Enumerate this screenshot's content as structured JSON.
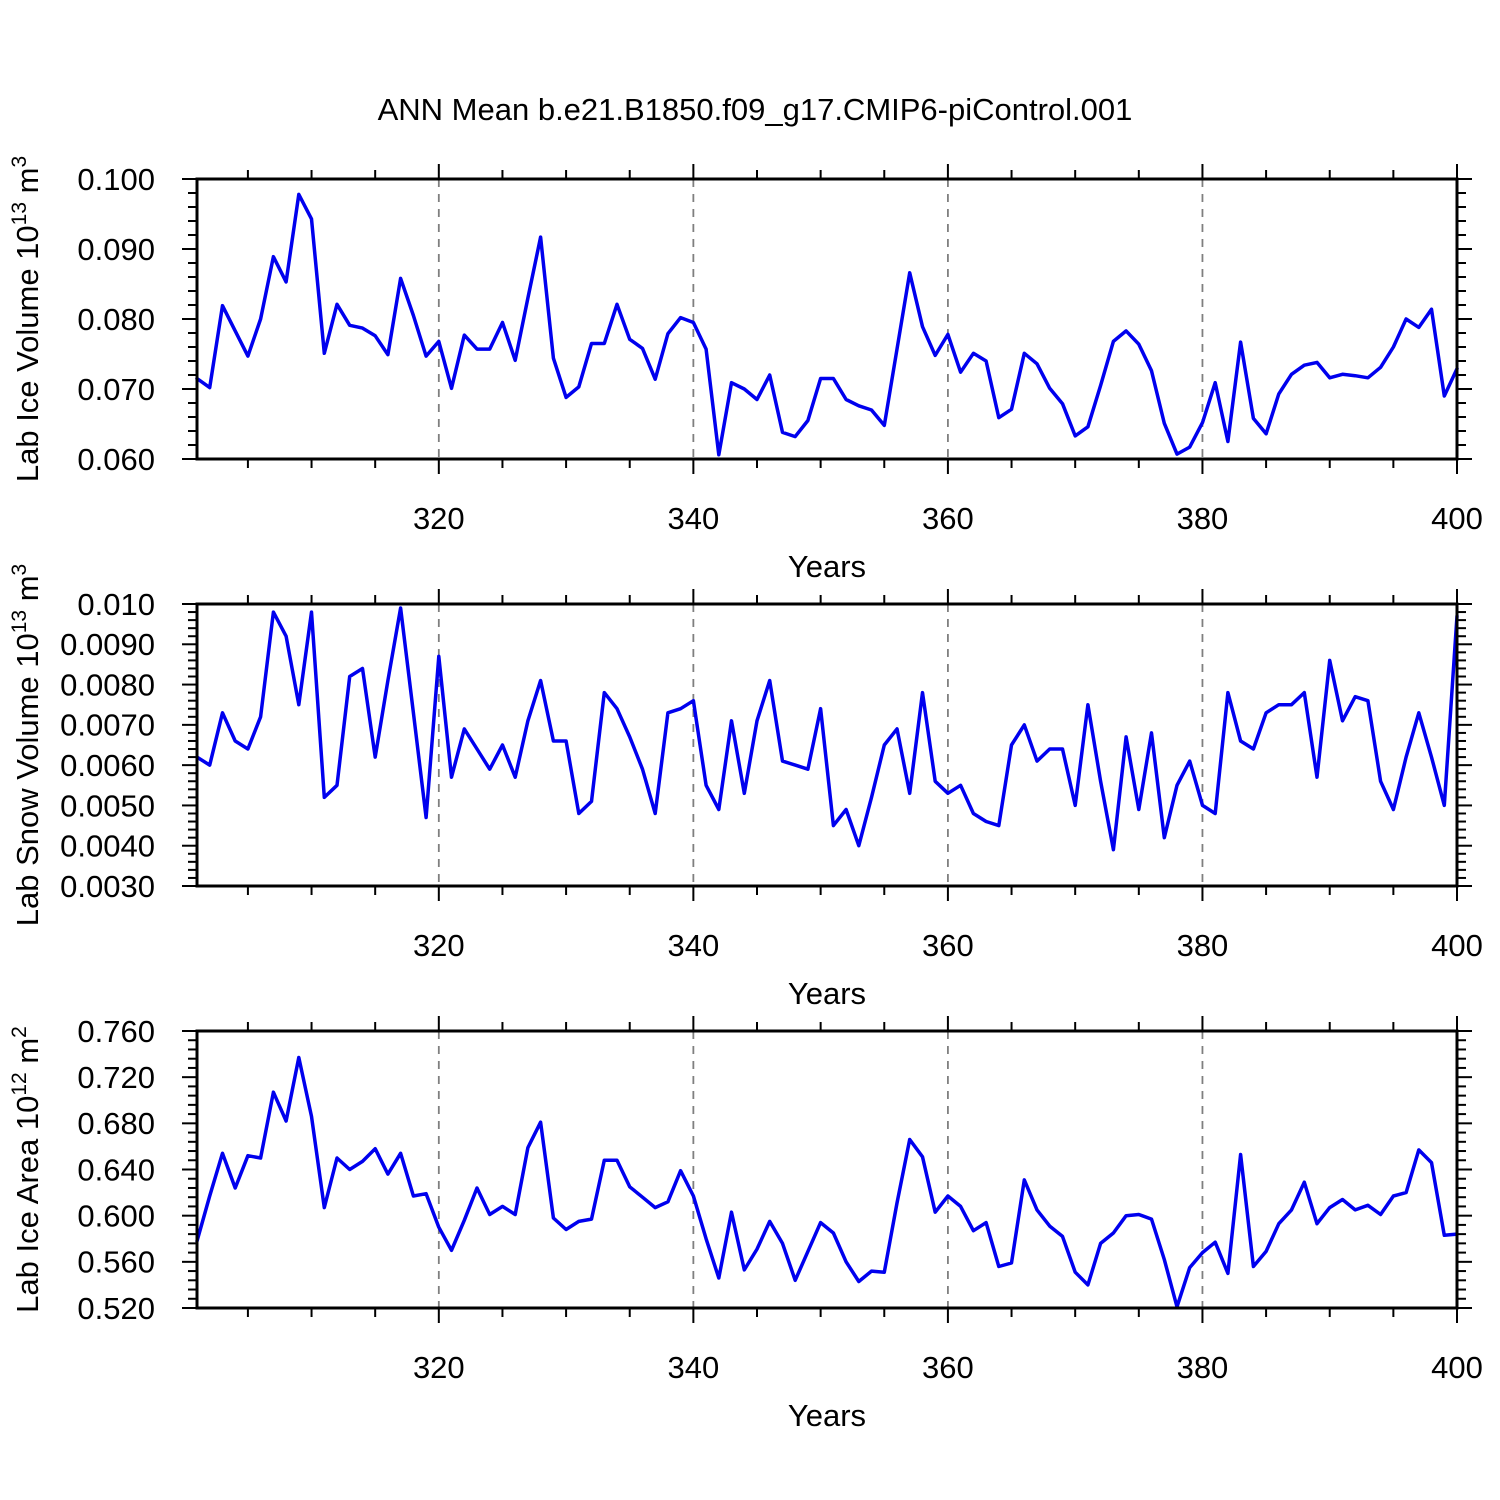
{
  "title": "ANN Mean b.e21.B1850.f09_g17.CMIP6-piControl.001",
  "style": {
    "line_color": "#0000EE",
    "grid_color": "#7f7f7f",
    "axis_color": "#000000"
  },
  "years": [
    301,
    302,
    303,
    304,
    305,
    306,
    307,
    308,
    309,
    310,
    311,
    312,
    313,
    314,
    315,
    316,
    317,
    318,
    319,
    320,
    321,
    322,
    323,
    324,
    325,
    326,
    327,
    328,
    329,
    330,
    331,
    332,
    333,
    334,
    335,
    336,
    337,
    338,
    339,
    340,
    341,
    342,
    343,
    344,
    345,
    346,
    347,
    348,
    349,
    350,
    351,
    352,
    353,
    354,
    355,
    356,
    357,
    358,
    359,
    360,
    361,
    362,
    363,
    364,
    365,
    366,
    367,
    368,
    369,
    370,
    371,
    372,
    373,
    374,
    375,
    376,
    377,
    378,
    379,
    380,
    381,
    382,
    383,
    384,
    385,
    386,
    387,
    388,
    389,
    390,
    391,
    392,
    393,
    394,
    395,
    396,
    397,
    398,
    399,
    400
  ],
  "chart_data": [
    {
      "type": "line",
      "name": "lab-ice-volume",
      "ylabel_plain": "Lab Ice Volume 10^13 m^3",
      "ylabel_parts": [
        {
          "t": "Lab Ice Volume 10"
        },
        {
          "s": "13"
        },
        {
          "t": " m"
        },
        {
          "s": "3"
        }
      ],
      "ylim": [
        0.06,
        0.1
      ],
      "yticks": {
        "labels": [
          "0.100",
          "0.090",
          "0.080",
          "0.070",
          "0.060"
        ],
        "values": [
          0.1,
          0.09,
          0.08,
          0.07,
          0.06
        ]
      },
      "yminor_step": 0.002,
      "xlabel": "Years",
      "xlim": [
        301,
        400
      ],
      "xticks": {
        "labels": [
          "320",
          "340",
          "360",
          "380",
          "400"
        ],
        "values": [
          320,
          340,
          360,
          380,
          400
        ]
      },
      "xminor": {
        "start": 305,
        "step": 5,
        "end": 395
      },
      "grid_x": [
        320,
        340,
        360,
        380
      ],
      "values": [
        0.0715,
        0.0702,
        0.0819,
        0.0783,
        0.0747,
        0.08,
        0.0889,
        0.0853,
        0.0978,
        0.0943,
        0.0751,
        0.0821,
        0.0791,
        0.0787,
        0.0776,
        0.0749,
        0.0858,
        0.0805,
        0.0747,
        0.0768,
        0.0701,
        0.0777,
        0.0757,
        0.0757,
        0.0795,
        0.0741,
        0.083,
        0.0917,
        0.0744,
        0.0688,
        0.0703,
        0.0765,
        0.0765,
        0.0821,
        0.0771,
        0.0758,
        0.0714,
        0.0779,
        0.0802,
        0.0795,
        0.0757,
        0.0606,
        0.0709,
        0.07,
        0.0685,
        0.072,
        0.0638,
        0.0632,
        0.0655,
        0.0715,
        0.0715,
        0.0685,
        0.0676,
        0.067,
        0.0648,
        0.0757,
        0.0866,
        0.0789,
        0.0748,
        0.0778,
        0.0724,
        0.0751,
        0.074,
        0.0659,
        0.0671,
        0.0751,
        0.0736,
        0.0701,
        0.0679,
        0.0633,
        0.0646,
        0.0705,
        0.0768,
        0.0783,
        0.0764,
        0.0726,
        0.0651,
        0.0607,
        0.0617,
        0.0652,
        0.0709,
        0.0625,
        0.0767,
        0.0658,
        0.0636,
        0.0693,
        0.0721,
        0.0734,
        0.0738,
        0.0716,
        0.0721,
        0.0719,
        0.0716,
        0.0731,
        0.076,
        0.08,
        0.0788,
        0.0814,
        0.069,
        0.0729
      ]
    },
    {
      "type": "line",
      "name": "lab-snow-volume",
      "ylabel_plain": "Lab Snow Volume 10^13 m^3",
      "ylabel_parts": [
        {
          "t": "Lab Snow Volume 10"
        },
        {
          "s": "13"
        },
        {
          "t": " m"
        },
        {
          "s": "3"
        }
      ],
      "ylim": [
        0.003,
        0.01
      ],
      "yticks": {
        "labels": [
          "0.010",
          "0.0090",
          "0.0080",
          "0.0070",
          "0.0060",
          "0.0050",
          "0.0040",
          "0.0030"
        ],
        "values": [
          0.01,
          0.009,
          0.008,
          0.007,
          0.006,
          0.005,
          0.004,
          0.003
        ]
      },
      "yminor_step": 0.0002,
      "xlabel": "Years",
      "xlim": [
        301,
        400
      ],
      "xticks": {
        "labels": [
          "320",
          "340",
          "360",
          "380",
          "400"
        ],
        "values": [
          320,
          340,
          360,
          380,
          400
        ]
      },
      "xminor": {
        "start": 305,
        "step": 5,
        "end": 395
      },
      "grid_x": [
        320,
        340,
        360,
        380
      ],
      "values": [
        0.0062,
        0.006,
        0.0073,
        0.0066,
        0.0064,
        0.0072,
        0.0098,
        0.0092,
        0.0075,
        0.0098,
        0.0052,
        0.0055,
        0.0082,
        0.0084,
        0.0062,
        0.0081,
        0.0099,
        0.0073,
        0.0047,
        0.0087,
        0.0057,
        0.0069,
        0.0064,
        0.0059,
        0.0065,
        0.0057,
        0.0071,
        0.0081,
        0.0066,
        0.0066,
        0.0048,
        0.0051,
        0.0078,
        0.0074,
        0.0067,
        0.0059,
        0.0048,
        0.0073,
        0.0074,
        0.0076,
        0.0055,
        0.0049,
        0.0071,
        0.0053,
        0.0071,
        0.0081,
        0.0061,
        0.006,
        0.0059,
        0.0074,
        0.0045,
        0.0049,
        0.004,
        0.0052,
        0.0065,
        0.0069,
        0.0053,
        0.0078,
        0.0056,
        0.0053,
        0.0055,
        0.0048,
        0.0046,
        0.0045,
        0.0065,
        0.007,
        0.0061,
        0.0064,
        0.0064,
        0.005,
        0.0075,
        0.0056,
        0.0039,
        0.0067,
        0.0049,
        0.0068,
        0.0042,
        0.0055,
        0.0061,
        0.005,
        0.0048,
        0.0078,
        0.0066,
        0.0064,
        0.0073,
        0.0075,
        0.0075,
        0.0078,
        0.0057,
        0.0086,
        0.0071,
        0.0077,
        0.0076,
        0.0056,
        0.0049,
        0.0062,
        0.0073,
        0.0062,
        0.005,
        0.0097
      ]
    },
    {
      "type": "line",
      "name": "lab-ice-area",
      "ylabel_plain": "Lab Ice Area 10^12 m^2",
      "ylabel_parts": [
        {
          "t": "Lab Ice Area 10"
        },
        {
          "s": "12"
        },
        {
          "t": " m"
        },
        {
          "s": "2"
        }
      ],
      "ylim": [
        0.52,
        0.76
      ],
      "yticks": {
        "labels": [
          "0.760",
          "0.720",
          "0.680",
          "0.640",
          "0.600",
          "0.560",
          "0.520"
        ],
        "values": [
          0.76,
          0.72,
          0.68,
          0.64,
          0.6,
          0.56,
          0.52
        ]
      },
      "yminor_step": 0.008,
      "xlabel": "Years",
      "xlim": [
        301,
        400
      ],
      "xticks": {
        "labels": [
          "320",
          "340",
          "360",
          "380",
          "400"
        ],
        "values": [
          320,
          340,
          360,
          380,
          400
        ]
      },
      "xminor": {
        "start": 305,
        "step": 5,
        "end": 395
      },
      "grid_x": [
        320,
        340,
        360,
        380
      ],
      "values": [
        0.578,
        0.617,
        0.654,
        0.624,
        0.652,
        0.65,
        0.707,
        0.682,
        0.737,
        0.686,
        0.607,
        0.65,
        0.64,
        0.647,
        0.658,
        0.636,
        0.654,
        0.617,
        0.619,
        0.59,
        0.57,
        0.596,
        0.624,
        0.601,
        0.608,
        0.601,
        0.659,
        0.681,
        0.598,
        0.588,
        0.595,
        0.597,
        0.648,
        0.648,
        0.625,
        0.616,
        0.607,
        0.612,
        0.639,
        0.617,
        0.58,
        0.546,
        0.603,
        0.553,
        0.571,
        0.595,
        0.576,
        0.544,
        0.569,
        0.594,
        0.585,
        0.56,
        0.543,
        0.552,
        0.551,
        0.611,
        0.666,
        0.651,
        0.603,
        0.617,
        0.608,
        0.587,
        0.594,
        0.556,
        0.559,
        0.631,
        0.605,
        0.591,
        0.582,
        0.551,
        0.54,
        0.576,
        0.585,
        0.6,
        0.601,
        0.597,
        0.562,
        0.521,
        0.555,
        0.568,
        0.577,
        0.55,
        0.653,
        0.556,
        0.569,
        0.593,
        0.605,
        0.629,
        0.593,
        0.607,
        0.614,
        0.605,
        0.609,
        0.601,
        0.617,
        0.62,
        0.657,
        0.646,
        0.583,
        0.584
      ]
    }
  ]
}
